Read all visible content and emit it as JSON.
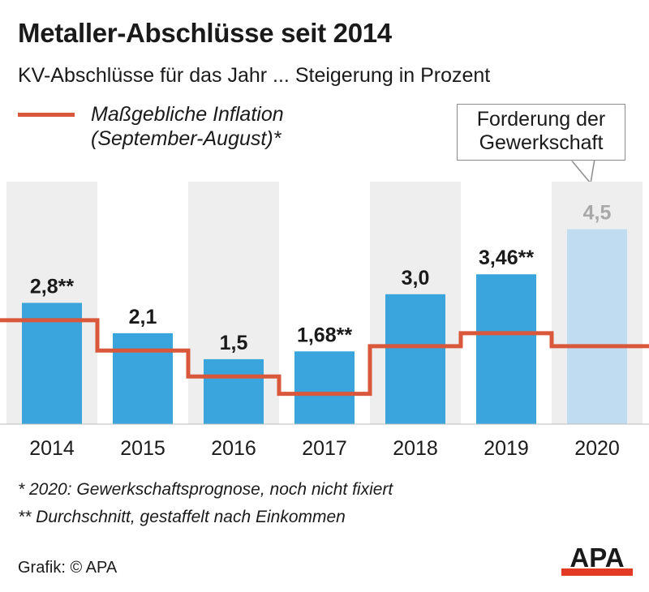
{
  "title": "Metaller-Abschlüsse seit 2014",
  "subtitle": "KV-Abschlüsse für das Jahr ... Steigerung in Prozent",
  "legend": {
    "line1": "Maßgebliche Inflation",
    "line2": "(September-August)*"
  },
  "callout": {
    "line1": "Forderung der",
    "line2": "Gewerkschaft"
  },
  "colors": {
    "bar": "#3aa5dc",
    "bar_forecast": "#c0dcf1",
    "inflation_line": "#d9573a",
    "column_bg": "#eeeeee",
    "label_forecast": "#a8a8a8",
    "text": "#1a1a1a"
  },
  "chart_data": {
    "type": "bar",
    "categories": [
      "2014",
      "2015",
      "2016",
      "2017",
      "2018",
      "2019",
      "2020"
    ],
    "series": [
      {
        "values": [
          2.8,
          2.1,
          1.5,
          1.68,
          3.0,
          3.46,
          4.5
        ],
        "labels": [
          "2,8**",
          "2,1",
          "1,5",
          "1,68**",
          "3,0",
          "3,46**",
          "4,5"
        ],
        "forecast": [
          false,
          false,
          false,
          false,
          false,
          false,
          true
        ]
      }
    ],
    "inflation": [
      2.4,
      1.7,
      1.1,
      0.7,
      1.8,
      2.1,
      1.8
    ],
    "ylim": [
      0,
      5.5
    ],
    "xlabel": "",
    "ylabel": ""
  },
  "footnotes": {
    "note1": "*   2020: Gewerkschaftsprognose, noch nicht fixiert",
    "note2": "** Durchschnitt, gestaffelt nach Einkommen"
  },
  "source": "Grafik: © APA",
  "logo_text": "APA"
}
